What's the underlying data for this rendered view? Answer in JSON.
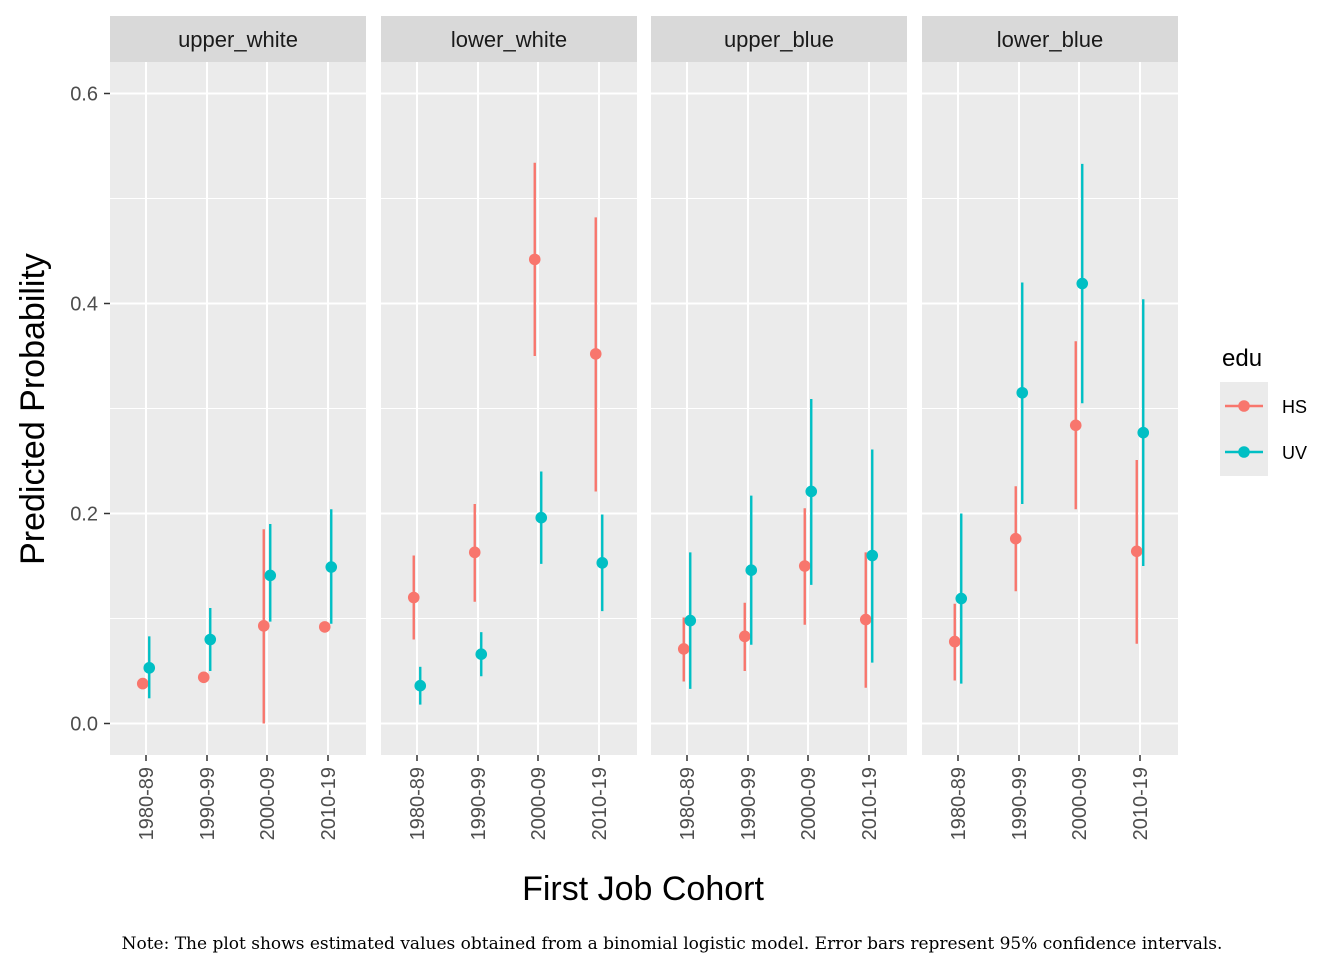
{
  "chart_data": {
    "type": "scatter",
    "xlabel": "First Job Cohort",
    "ylabel": "Predicted Probability",
    "ylim": [
      -0.03,
      0.63
    ],
    "yticks": [
      0.0,
      0.2,
      0.4,
      0.6
    ],
    "ytick_labels": [
      "0.0",
      "0.2",
      "0.4",
      "0.6"
    ],
    "categories": [
      "1980-89",
      "1990-99",
      "2000-09",
      "2010-19"
    ],
    "legend": {
      "title": "edu",
      "position": "right",
      "entries": [
        {
          "name": "HS",
          "color": "#F8766D"
        },
        {
          "name": "UV",
          "color": "#00BFC4"
        }
      ]
    },
    "grid": true,
    "facets": [
      {
        "label": "upper_white",
        "series": [
          {
            "name": "HS",
            "values": [
              0.038,
              0.044,
              0.093,
              0.092
            ],
            "lower": [
              0.038,
              0.044,
              0.0,
              0.092
            ],
            "upper": [
              0.038,
              0.044,
              0.185,
              0.092
            ]
          },
          {
            "name": "UV",
            "values": [
              0.053,
              0.08,
              0.141,
              0.149
            ],
            "lower": [
              0.024,
              0.05,
              0.097,
              0.095
            ],
            "upper": [
              0.083,
              0.11,
              0.19,
              0.204
            ]
          }
        ]
      },
      {
        "label": "lower_white",
        "series": [
          {
            "name": "HS",
            "values": [
              0.12,
              0.163,
              0.442,
              0.352
            ],
            "lower": [
              0.08,
              0.116,
              0.35,
              0.221
            ],
            "upper": [
              0.16,
              0.209,
              0.534,
              0.482
            ]
          },
          {
            "name": "UV",
            "values": [
              0.036,
              0.066,
              0.196,
              0.153
            ],
            "lower": [
              0.018,
              0.045,
              0.152,
              0.107
            ],
            "upper": [
              0.054,
              0.087,
              0.24,
              0.199
            ]
          }
        ]
      },
      {
        "label": "upper_blue",
        "series": [
          {
            "name": "HS",
            "values": [
              0.071,
              0.083,
              0.15,
              0.099
            ],
            "lower": [
              0.04,
              0.05,
              0.094,
              0.034
            ],
            "upper": [
              0.101,
              0.115,
              0.205,
              0.163
            ]
          },
          {
            "name": "UV",
            "values": [
              0.098,
              0.146,
              0.221,
              0.16
            ],
            "lower": [
              0.033,
              0.075,
              0.132,
              0.058
            ],
            "upper": [
              0.163,
              0.217,
              0.309,
              0.261
            ]
          }
        ]
      },
      {
        "label": "lower_blue",
        "series": [
          {
            "name": "HS",
            "values": [
              0.078,
              0.176,
              0.284,
              0.164
            ],
            "lower": [
              0.041,
              0.126,
              0.204,
              0.076
            ],
            "upper": [
              0.114,
              0.226,
              0.364,
              0.251
            ]
          },
          {
            "name": "UV",
            "values": [
              0.119,
              0.315,
              0.419,
              0.277
            ],
            "lower": [
              0.038,
              0.209,
              0.305,
              0.15
            ],
            "upper": [
              0.2,
              0.42,
              0.533,
              0.404
            ]
          }
        ]
      }
    ],
    "note": "Note: The plot shows estimated values obtained from a binomial logistic model. Error bars represent 95% confidence intervals."
  }
}
